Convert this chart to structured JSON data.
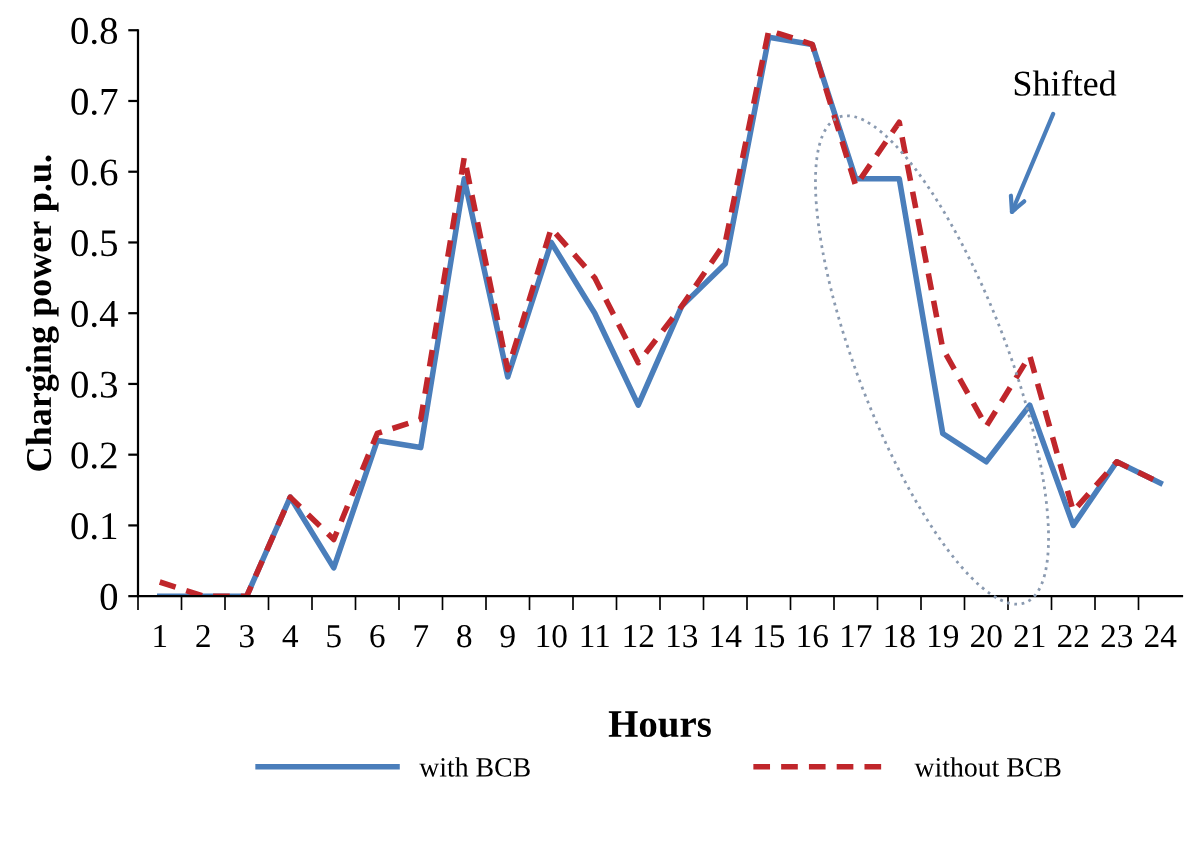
{
  "chart_data": {
    "type": "line",
    "xlabel": "Hours",
    "ylabel": "Charging power p.u.",
    "categories": [
      "1",
      "2",
      "3",
      "4",
      "5",
      "6",
      "7",
      "8",
      "9",
      "10",
      "11",
      "12",
      "13",
      "14",
      "15",
      "16",
      "17",
      "18",
      "19",
      "20",
      "21",
      "22",
      "23",
      "24"
    ],
    "series": [
      {
        "name": "with BCB",
        "color": "#4a7ebb",
        "line_style": "solid",
        "values": [
          0,
          0,
          0,
          0.14,
          0.04,
          0.22,
          0.21,
          0.59,
          0.31,
          0.5,
          0.4,
          0.27,
          0.41,
          0.47,
          0.79,
          0.78,
          0.59,
          0.59,
          0.23,
          0.19,
          0.27,
          0.1,
          0.19,
          0.16
        ]
      },
      {
        "name": "without BCB",
        "color": "#c0262b",
        "line_style": "dashed",
        "values": [
          0.02,
          0,
          0,
          0.14,
          0.08,
          0.23,
          0.25,
          0.62,
          0.32,
          0.52,
          0.45,
          0.33,
          0.41,
          0.5,
          0.8,
          0.78,
          0.58,
          0.67,
          0.35,
          0.24,
          0.34,
          0.12,
          0.19,
          0.16
        ]
      }
    ],
    "ylim": [
      0,
      0.8
    ],
    "yticks": [
      0,
      0.1,
      0.2,
      0.3,
      0.4,
      0.5,
      0.6,
      0.7,
      0.8
    ],
    "grid": false,
    "legend": "bottom",
    "annotations": [
      "Shifted"
    ]
  }
}
